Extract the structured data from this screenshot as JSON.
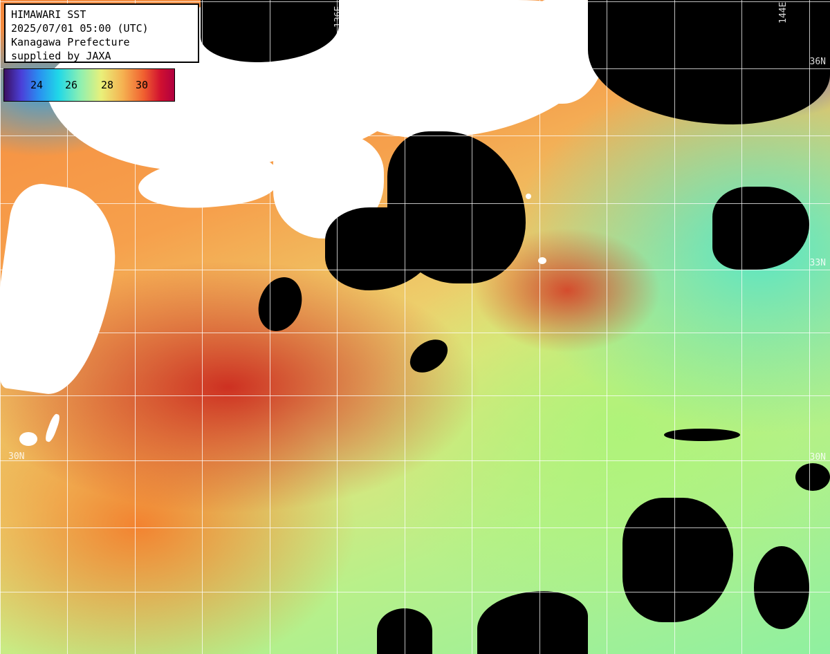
{
  "header": {
    "title": "HIMAWARI SST",
    "datetime": "2025/07/01 05:00 (UTC)",
    "region": "Kanagawa Prefecture",
    "credit": "supplied by JAXA"
  },
  "legend": {
    "ticks": [
      "24",
      "26",
      "28",
      "30"
    ],
    "colors": {
      "min": "#3a1060",
      "cool": "#2a8cf0",
      "mid": "#8ff0b0",
      "warm": "#f5b050",
      "max": "#b00040"
    }
  },
  "graticule": {
    "longitude_labels": [
      "136E",
      "144E"
    ],
    "latitude_labels": [
      "36N",
      "33N",
      "30N",
      "30N"
    ]
  },
  "map": {
    "land_color": "#ffffff",
    "cloud_color": "#000000"
  }
}
